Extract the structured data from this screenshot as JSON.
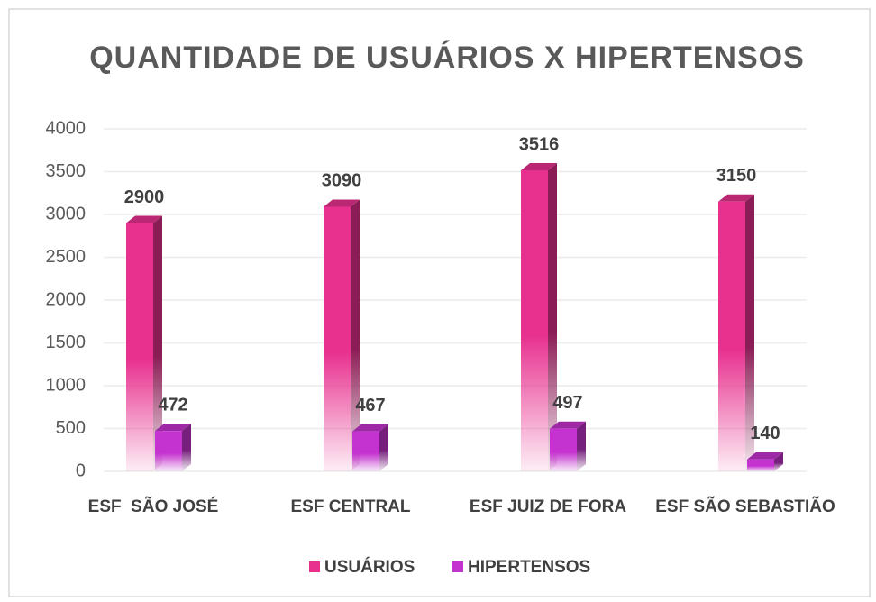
{
  "chart_data": {
    "type": "bar3d",
    "title": "QUANTIDADE DE USUÁRIOS X HIPERTENSOS",
    "categories": [
      "ESF  SÃO JOSÉ",
      "ESF CENTRAL",
      "ESF JUIZ DE FORA",
      "ESF SÃO SEBASTIÃO"
    ],
    "series": [
      {
        "name": "USUÁRIOS",
        "color": "#e8318f",
        "values": [
          2900,
          3090,
          3516,
          3150
        ]
      },
      {
        "name": "HIPERTENSOS",
        "color": "#c433cf",
        "values": [
          472,
          467,
          497,
          140
        ]
      }
    ],
    "ylim": [
      0,
      4000
    ],
    "yticks": [
      0,
      500,
      1000,
      1500,
      2000,
      2500,
      3000,
      3500,
      4000
    ],
    "grid": true,
    "legend": "bottom"
  }
}
